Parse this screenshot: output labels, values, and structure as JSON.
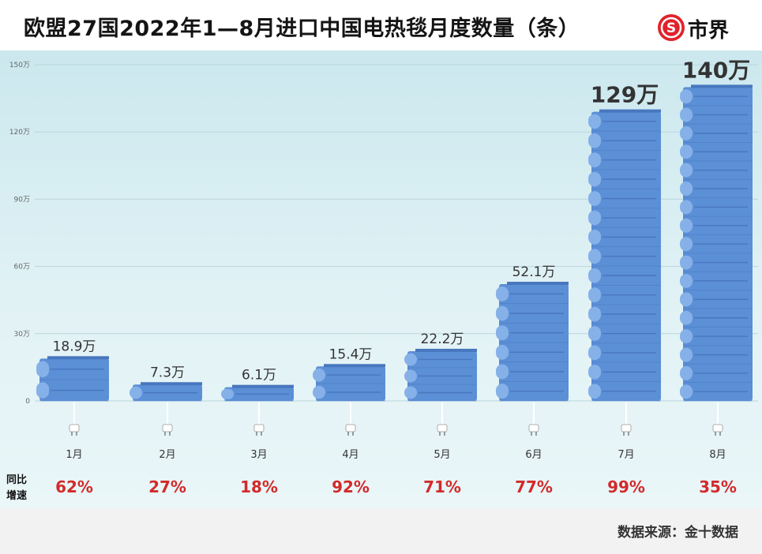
{
  "header": {
    "title": "欧盟27国2022年1—8月进口中国电热毯月度数量（条）",
    "logo_text": "市界",
    "logo_symbol": "S"
  },
  "footer": {
    "source": "数据来源：金十数据"
  },
  "growth_row_label": "同比\n增速",
  "colors": {
    "bar": "#5b8fd6",
    "bar_dark": "#4877bf",
    "bar_light": "#86b1e8",
    "growth_text": "#d22a2a",
    "logo_red": "#e0222b"
  },
  "chart_data": {
    "type": "bar",
    "title": "欧盟27国2022年1—8月进口中国电热毯月度数量（条）",
    "categories": [
      "1月",
      "2月",
      "3月",
      "4月",
      "5月",
      "6月",
      "7月",
      "8月"
    ],
    "values": [
      189000,
      73000,
      61000,
      154000,
      222000,
      521000,
      1290000,
      1400000
    ],
    "value_labels": [
      "18.9万",
      "7.3万",
      "6.1万",
      "15.4万",
      "22.2万",
      "52.1万",
      "129万",
      "140万"
    ],
    "growth_rates": [
      "62%",
      "27%",
      "18%",
      "92%",
      "71%",
      "77%",
      "99%",
      "35%"
    ],
    "ylim": [
      0,
      1500000
    ],
    "yticks": [
      0,
      300000,
      600000,
      900000,
      1200000,
      1500000
    ],
    "ytick_labels": [
      "0",
      "30万",
      "60万",
      "90万",
      "120万",
      "150万"
    ],
    "grid": true,
    "xlabel": "",
    "ylabel": ""
  }
}
